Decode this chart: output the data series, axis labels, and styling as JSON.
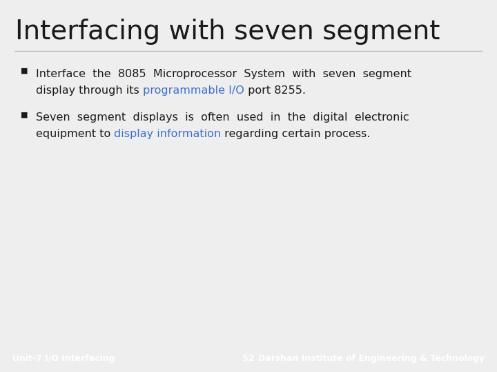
{
  "title": "Interfacing with seven segment",
  "background_color": "#eeeeee",
  "footer_bg_color": "#3a4d5c",
  "footer_text_color": "#ffffff",
  "footer_left": "Unit-7 I/O Interfacing",
  "footer_center": "52",
  "footer_right": "Darshan Institute of Engineering & Technology",
  "title_color": "#1a1a1a",
  "body_text_color": "#1a1a1a",
  "highlight_color": "#3a6fd8",
  "separator_color": "#bbbbbb",
  "bullet_char": "■",
  "title_fontsize": 28,
  "body_fontsize": 11.5,
  "footer_fontsize": 9
}
